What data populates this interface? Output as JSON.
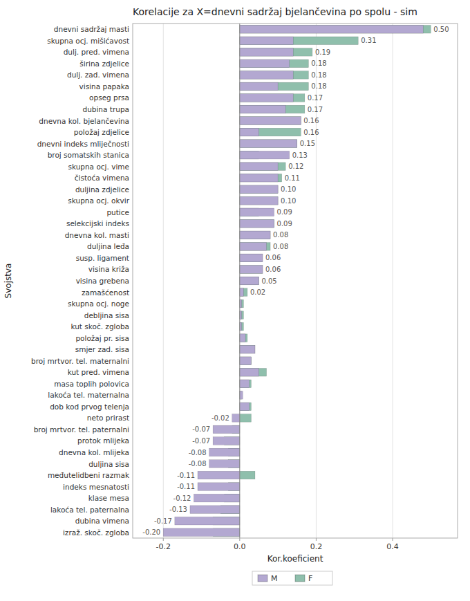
{
  "chart_data": {
    "type": "bar",
    "orientation": "horizontal",
    "title": "Korelacije za X=dnevni sadržaj bjelančevina po spolu - sim",
    "xlabel": "Kor.koeficient",
    "ylabel": "Svojstva",
    "categories": [
      "dnevni sadržaj masti",
      "skupna ocj. mišićavost",
      "dulj. pred. vimena",
      "širina zdjelice",
      "dulj. zad. vimena",
      "visina papaka",
      "opseg prsa",
      "dubina trupa",
      "dnevna kol. bjelančevina",
      "položaj zdjelice",
      "dnevni indeks mliječnosti",
      "broj somatskih stanica",
      "skupna ocj. vime",
      "čistoća vimena",
      "duljina zdjelice",
      "skupna ocj. okvir",
      "putice",
      "selekcijski indeks",
      "dnevna kol. masti",
      "duljina leđa",
      "susp. ligament",
      "visina križa",
      "visina grebena",
      "zamašćenost",
      "skupna ocj. noge",
      "debljina sisa",
      "kut skoč. zgloba",
      "položaj pr. sisa",
      "smjer zad. sisa",
      "broj mrtvor. tel. maternalni",
      "kut pred. vimena",
      "masa toplih polovica",
      "lakoća tel. maternalna",
      "dob kod prvog telenja",
      "neto prirast",
      "broj mrtvor. tel. paternalni",
      "protok mlijeka",
      "dnevna kol. mlijeka",
      "duljina sisa",
      "međutelidbeni razmak",
      "indeks mesnatosti",
      "klase mesa",
      "lakoća tel. paternalna",
      "dubina vimena",
      "izraž. skoč. zgloba"
    ],
    "series": [
      {
        "name": "M",
        "color": "#b3a8d1",
        "values": [
          0.48,
          0.14,
          0.14,
          0.13,
          0.14,
          0.1,
          0.14,
          0.12,
          0.16,
          0.05,
          0.15,
          0.13,
          0.1,
          0.1,
          0.1,
          0.1,
          0.09,
          0.09,
          0.08,
          0.07,
          0.06,
          0.06,
          0.05,
          0.01,
          0.005,
          0.005,
          0.005,
          0.015,
          0.04,
          0.03,
          0.05,
          0.025,
          0.008,
          0.025,
          -0.02,
          -0.07,
          -0.07,
          -0.08,
          -0.08,
          -0.11,
          -0.11,
          -0.12,
          -0.13,
          -0.17,
          -0.2
        ],
        "value_labels": [
          null,
          null,
          null,
          null,
          null,
          null,
          null,
          null,
          null,
          null,
          null,
          "0.13",
          null,
          null,
          null,
          null,
          "0.09",
          null,
          null,
          null,
          null,
          null,
          null,
          null,
          null,
          null,
          null,
          null,
          null,
          null,
          null,
          null,
          null,
          null,
          "-0.02",
          "-0.07",
          "-0.07",
          "-0.08",
          "-0.08",
          "-0.11",
          "-0.11",
          "-0.12",
          "-0.13",
          "-0.17",
          "-0.20"
        ]
      },
      {
        "name": "F",
        "color": "#8fbfac",
        "values": [
          0.5,
          0.31,
          0.19,
          0.18,
          0.18,
          0.18,
          0.17,
          0.17,
          0.16,
          0.16,
          0.15,
          0.05,
          0.12,
          0.11,
          0.1,
          0.1,
          0.05,
          0.09,
          0.08,
          0.08,
          0.06,
          0.06,
          0.05,
          0.02,
          0.01,
          0.01,
          0.01,
          0.02,
          0.04,
          0.03,
          0.07,
          0.03,
          0.005,
          0.03,
          0.03,
          -0.02,
          -0.04,
          -0.03,
          -0.03,
          0.04,
          -0.03,
          -0.04,
          -0.05,
          -0.07,
          -0.07
        ],
        "value_labels": [
          "0.50",
          "0.31",
          "0.19",
          "0.18",
          "0.18",
          "0.18",
          "0.17",
          "0.17",
          "0.16",
          "0.16",
          "0.15",
          null,
          "0.12",
          "0.11",
          "0.10",
          "0.10",
          null,
          "0.09",
          "0.08",
          "0.08",
          "0.06",
          "0.06",
          "0.05",
          "0.02",
          null,
          null,
          null,
          null,
          null,
          null,
          null,
          null,
          null,
          null,
          null,
          null,
          null,
          null,
          null,
          null,
          null,
          null,
          null,
          null,
          null
        ]
      }
    ],
    "xlim": [
      -0.28,
      0.57
    ],
    "xticks": [
      -0.2,
      {
        "value": 0.0,
        "label": "0.0"
      },
      0.2,
      0.4
    ],
    "grid": true,
    "data_labels": true,
    "legend": "bottom"
  }
}
